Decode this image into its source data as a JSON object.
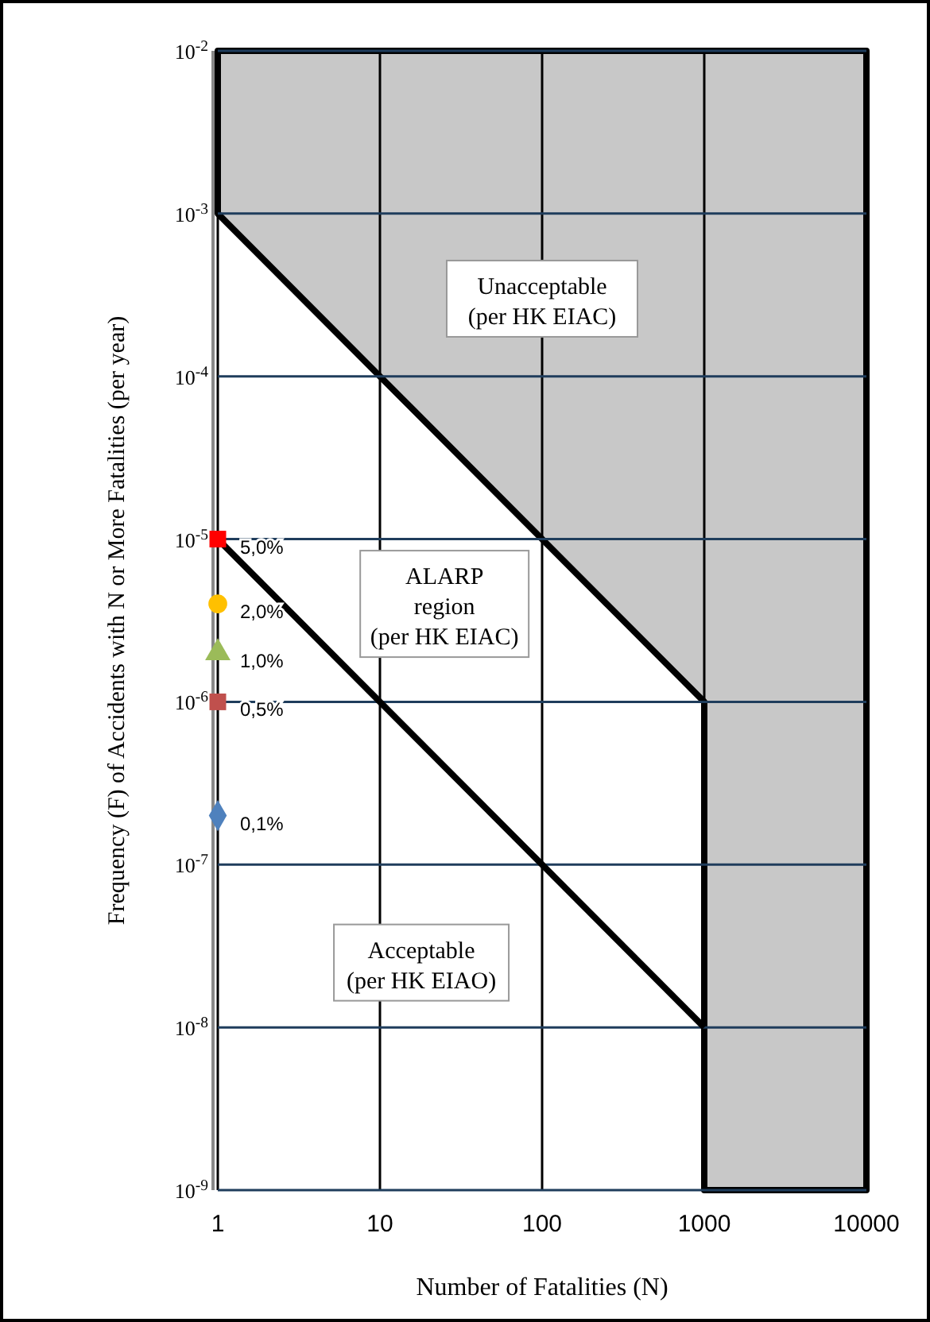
{
  "chart_data": {
    "type": "line",
    "xlabel": "Number of Fatalities (N)",
    "ylabel": "Frequency (F) of Accidents with N or More Fatalities (per year)",
    "log": "xy",
    "grid": true,
    "legend": false,
    "xlim": [
      1,
      10000
    ],
    "xticks": [
      1,
      10,
      100,
      1000,
      10000
    ],
    "ylim": [
      1e-09,
      0.01
    ],
    "yticks": [
      {
        "value": 1e-09,
        "label": "10$^{-9}$"
      },
      {
        "value": 1e-08,
        "label": "10$^{-8}$"
      },
      {
        "value": 1e-07,
        "label": "10$^{-7}$"
      },
      {
        "value": 1e-06,
        "label": "10$^{-6}$"
      },
      {
        "value": 1e-05,
        "label": "10$^{-5}$"
      },
      {
        "value": 0.0001,
        "label": "10$^{-4}$"
      },
      {
        "value": 0.001,
        "label": "10$^{-3}$"
      },
      {
        "value": 0.01,
        "label": "10$^{-2}$"
      }
    ],
    "series": [
      {
        "type": "line",
        "color": "#000000",
        "x": [
          1,
          1000
        ],
        "values": [
          1e-05,
          1e-08
        ]
      },
      {
        "type": "area",
        "color": "#c8c8c8",
        "x": [
          1,
          1000,
          1000,
          10000,
          10000,
          1
        ],
        "values": [
          0.001,
          1e-06,
          1e-09,
          1e-09,
          0.01,
          0.01
        ]
      },
      {
        "type": "scatter",
        "marker": "square",
        "color": "#ff0000",
        "x": [
          1
        ],
        "values": [
          1e-05
        ],
        "name": "5,0%"
      },
      {
        "type": "scatter",
        "marker": "circle",
        "color": "#ffc000",
        "x": [
          1
        ],
        "values": [
          4e-06
        ],
        "name": "2,0%"
      },
      {
        "type": "scatter",
        "marker": "triangle",
        "color": "#9bbb59",
        "x": [
          1
        ],
        "values": [
          2e-06
        ],
        "name": "1,0%"
      },
      {
        "type": "scatter",
        "marker": "square",
        "color": "#c0504d",
        "x": [
          1
        ],
        "values": [
          1e-06
        ],
        "name": "0,5%"
      },
      {
        "type": "scatter",
        "marker": "diamond",
        "color": "#4f81bd",
        "x": [
          1
        ],
        "values": [
          2e-07
        ],
        "name": "0,1%"
      }
    ],
    "annotations": [
      "Unacceptable\n(per HK EIAC)",
      "ALARP\nregion\n(per HK EIAC)",
      "Acceptable\n(per HK EIAO)"
    ]
  }
}
